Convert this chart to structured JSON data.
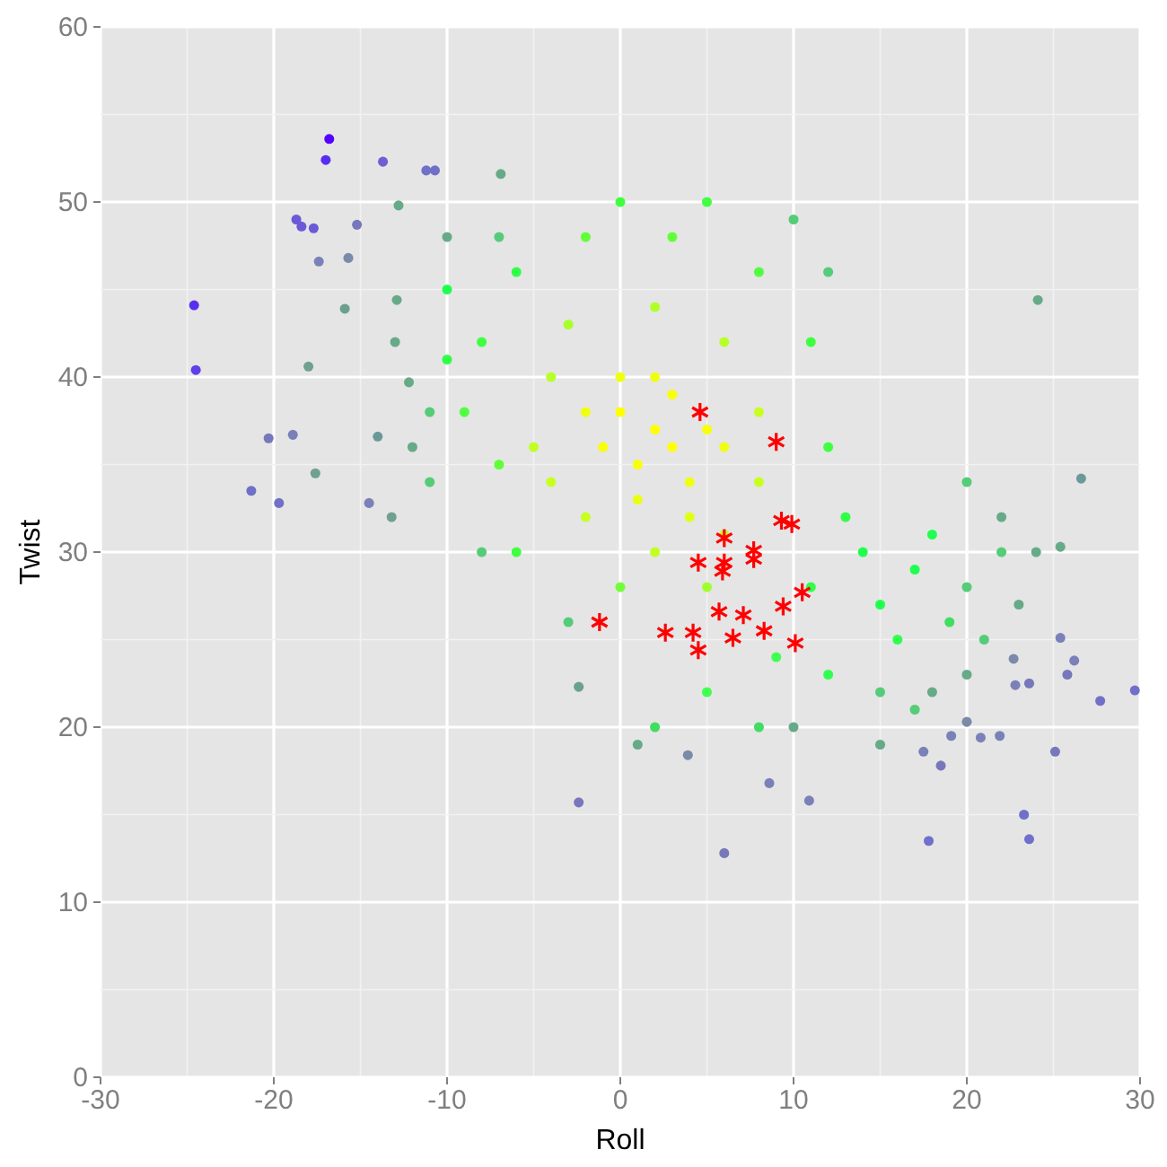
{
  "chart_data": {
    "type": "scatter",
    "xlabel": "Roll",
    "ylabel": "Twist",
    "xlim": [
      -30,
      30
    ],
    "ylim": [
      0,
      60
    ],
    "xticks": [
      -30,
      -20,
      -10,
      0,
      10,
      20,
      30
    ],
    "yticks": [
      0,
      10,
      20,
      30,
      40,
      50,
      60
    ],
    "grid": true,
    "series": [
      {
        "marker": "circle",
        "x": [
          -16.8,
          -17.0,
          -13.7,
          -11.2,
          -10.7,
          -24.6,
          -24.5,
          -18.4,
          -18.7,
          -17.7,
          -15.2,
          -17.4,
          -15.7,
          -20.3,
          -18.9,
          -21.3,
          -19.7,
          -17.6,
          -18.0,
          -15.9,
          -12.8,
          -6.9,
          -12.9,
          -12.2,
          -14.0,
          -14.5,
          -13.2,
          24.1,
          25.4,
          26.6,
          29.7,
          27.7,
          25.8,
          26.2,
          25.4,
          25.1,
          23.3,
          23.6,
          17.8,
          21.9,
          20.8,
          23.6,
          22.7,
          22.8,
          18.5,
          10.9,
          8.6,
          19.1,
          17.5,
          20.0,
          -2.4,
          6.0,
          -2.4,
          3.9,
          0,
          2,
          3,
          1,
          4,
          -1,
          2,
          5,
          3,
          0,
          6,
          -2,
          1,
          4,
          -4,
          -5,
          -3,
          2,
          6,
          8,
          8,
          6,
          2,
          -2,
          -4,
          5,
          -8,
          -9,
          -7,
          -6,
          -2,
          3,
          8,
          11,
          12,
          13,
          11,
          15,
          17,
          9,
          5,
          0,
          -6,
          -10,
          -10,
          0,
          5,
          14,
          18,
          16,
          12,
          19,
          20,
          21,
          22,
          15,
          17,
          -11,
          -11,
          -8,
          -7,
          10,
          12,
          20,
          2,
          8,
          -3,
          22,
          23,
          18,
          15,
          20,
          24,
          -13,
          -12,
          -10,
          10,
          1
        ],
        "values": [
          53.6,
          52.4,
          52.3,
          51.8,
          51.8,
          44.1,
          40.4,
          48.6,
          49.0,
          48.5,
          48.7,
          46.6,
          46.8,
          36.5,
          36.7,
          33.5,
          32.8,
          34.5,
          40.6,
          43.9,
          49.8,
          51.6,
          44.4,
          39.7,
          36.6,
          32.8,
          32.0,
          44.4,
          30.3,
          34.2,
          22.1,
          21.5,
          23.0,
          23.8,
          25.1,
          18.6,
          15.0,
          13.6,
          13.5,
          19.5,
          19.4,
          22.5,
          23.9,
          22.4,
          17.8,
          15.8,
          16.8,
          19.5,
          18.6,
          20.3,
          15.7,
          12.8,
          22.3,
          18.4,
          38,
          37,
          36,
          35,
          34,
          36,
          40,
          37,
          39,
          40,
          36,
          38,
          33,
          32,
          40,
          36,
          43,
          44,
          42,
          38,
          34,
          31,
          30,
          32,
          34,
          28,
          42,
          38,
          35,
          46,
          48,
          48,
          46,
          42,
          36,
          32,
          28,
          27,
          29,
          24,
          22,
          28,
          30,
          41,
          45,
          50,
          50,
          30,
          31,
          25,
          23,
          26,
          28,
          25,
          30,
          22,
          21,
          38,
          34,
          30,
          48,
          49,
          46,
          34,
          20,
          20,
          26,
          32,
          27,
          22,
          19,
          23,
          30,
          42,
          36,
          48,
          20,
          19
        ],
        "colors": [
          "#5500ff",
          "#5a2ef0",
          "#6f5fd0",
          "#7070c8",
          "#7070c8",
          "#5a2ef0",
          "#6040e8",
          "#6a5ad8",
          "#6a5ad8",
          "#6a5ad8",
          "#7777bb",
          "#7a80b8",
          "#7a8aa8",
          "#7777bb",
          "#7a80b8",
          "#7070c8",
          "#7070c8",
          "#70a090",
          "#70a090",
          "#6aa090",
          "#66aa88",
          "#66aa88",
          "#66aa88",
          "#66aa88",
          "#6a9a98",
          "#7a80b8",
          "#70a090",
          "#66aa88",
          "#66aa88",
          "#6a9a98",
          "#7070cc",
          "#7070c8",
          "#7777bb",
          "#7a80b8",
          "#7a80b8",
          "#7777bb",
          "#7070cc",
          "#7070cc",
          "#7070cc",
          "#7a80b8",
          "#7a80b8",
          "#7777bb",
          "#7a8aa8",
          "#7a80b8",
          "#7777bb",
          "#7a80b8",
          "#7a80b8",
          "#7a80b8",
          "#7a80b8",
          "#7a8aa8",
          "#7777bb",
          "#7777bb",
          "#6aa090",
          "#7a8aa8",
          "#ffff00",
          "#ffff00",
          "#ffff00",
          "#f8ff08",
          "#f0ff10",
          "#f8ff08",
          "#eeff10",
          "#f8ff08",
          "#f8ff08",
          "#f0ff10",
          "#f0ff10",
          "#f0ff10",
          "#e8ff14",
          "#e0ff18",
          "#b8ff28",
          "#c0ff24",
          "#a8ff2c",
          "#b0ff28",
          "#b8ff28",
          "#c8ff20",
          "#c8ff20",
          "#c0ff24",
          "#c0ff24",
          "#c8ff20",
          "#c8ff20",
          "#a0ff30",
          "#40ff40",
          "#50ff40",
          "#60ff38",
          "#30ff48",
          "#60ff38",
          "#60ff38",
          "#50ff40",
          "#40ff40",
          "#40ff40",
          "#30ff48",
          "#30ff48",
          "#20ff50",
          "#20ff50",
          "#40ff50",
          "#40ff50",
          "#70ff38",
          "#40ff40",
          "#30ff48",
          "#20ff50",
          "#40ff40",
          "#40ff40",
          "#20ff50",
          "#20ff50",
          "#30ff50",
          "#30ff50",
          "#40dd60",
          "#55cc77",
          "#55cc77",
          "#55cc77",
          "#55cc77",
          "#55cc77",
          "#55cc77",
          "#55cc77",
          "#55cc77",
          "#55cc77",
          "#55cc77",
          "#55cc77",
          "#55cc77",
          "#40dd60",
          "#40dd60",
          "#55cc77",
          "#66aa88",
          "#66aa88",
          "#66aa88",
          "#66aa88",
          "#66aa88",
          "#66aa88",
          "#66aa88",
          "#66aa88",
          "#66aa88",
          "#66aa88",
          "#66aa88"
        ]
      },
      {
        "marker": "cross",
        "color": "#ff0000",
        "x": [
          4.6,
          9.0,
          9.3,
          9.9,
          6.0,
          7.7,
          7.7,
          4.5,
          6.0,
          5.9,
          10.5,
          5.7,
          9.4,
          7.1,
          -1.2,
          2.6,
          4.2,
          6.5,
          8.3,
          10.1,
          4.5
        ],
        "values": [
          38.0,
          36.3,
          31.8,
          31.6,
          30.8,
          30.1,
          29.6,
          29.4,
          29.4,
          28.9,
          27.7,
          26.6,
          26.9,
          26.4,
          26.0,
          25.4,
          25.4,
          25.1,
          25.5,
          24.8,
          24.4
        ]
      }
    ]
  }
}
